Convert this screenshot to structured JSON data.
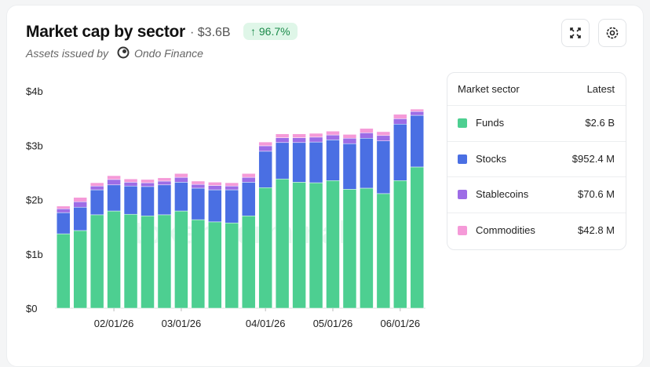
{
  "header": {
    "title": "Market cap by sector",
    "total": "· $3.6B",
    "change": "↑ 96.7%",
    "issued_by": "Assets issued by",
    "issuer": "Ondo Finance"
  },
  "legend_table": {
    "col_sector": "Market sector",
    "col_latest": "Latest"
  },
  "chart_data": {
    "type": "stacked-bar",
    "watermark": "token terminal",
    "categories": [
      null,
      null,
      null,
      "02/01/26",
      null,
      null,
      null,
      "03/01/26",
      null,
      null,
      null,
      null,
      "04/01/26",
      null,
      null,
      null,
      "05/01/26",
      null,
      null,
      null,
      "06/01/26",
      null
    ],
    "series": [
      {
        "name": "Funds",
        "color": "#4dcf91",
        "latest": "$2.6 B",
        "values": [
          1.37,
          1.43,
          1.72,
          1.79,
          1.73,
          1.7,
          1.72,
          1.79,
          1.63,
          1.59,
          1.57,
          1.7,
          2.22,
          2.38,
          2.32,
          2.31,
          2.35,
          2.19,
          2.21,
          2.11,
          2.35,
          2.6
        ]
      },
      {
        "name": "Stocks",
        "color": "#4a6fe3",
        "latest": "$952.4 M",
        "values": [
          0.39,
          0.43,
          0.46,
          0.48,
          0.52,
          0.54,
          0.55,
          0.53,
          0.58,
          0.59,
          0.61,
          0.62,
          0.67,
          0.67,
          0.73,
          0.75,
          0.75,
          0.84,
          0.92,
          0.97,
          1.04,
          0.952
        ]
      },
      {
        "name": "Stablecoins",
        "color": "#9d6ce6",
        "latest": "$70.6 M",
        "values": [
          0.07,
          0.1,
          0.07,
          0.1,
          0.07,
          0.07,
          0.07,
          0.09,
          0.07,
          0.08,
          0.07,
          0.09,
          0.1,
          0.09,
          0.09,
          0.09,
          0.09,
          0.1,
          0.1,
          0.1,
          0.1,
          0.071
        ]
      },
      {
        "name": "Commodities",
        "color": "#f59ad8",
        "latest": "$42.8 M",
        "values": [
          0.05,
          0.08,
          0.06,
          0.07,
          0.06,
          0.06,
          0.06,
          0.07,
          0.06,
          0.06,
          0.06,
          0.07,
          0.07,
          0.07,
          0.07,
          0.07,
          0.07,
          0.07,
          0.08,
          0.07,
          0.08,
          0.043
        ]
      }
    ],
    "ylim": [
      0,
      4
    ],
    "yticks": [
      {
        "value": 0,
        "label": "$0"
      },
      {
        "value": 1,
        "label": "$1b"
      },
      {
        "value": 2,
        "label": "$2b"
      },
      {
        "value": 3,
        "label": "$3b"
      },
      {
        "value": 4,
        "label": "$4b"
      }
    ],
    "grid": false
  }
}
